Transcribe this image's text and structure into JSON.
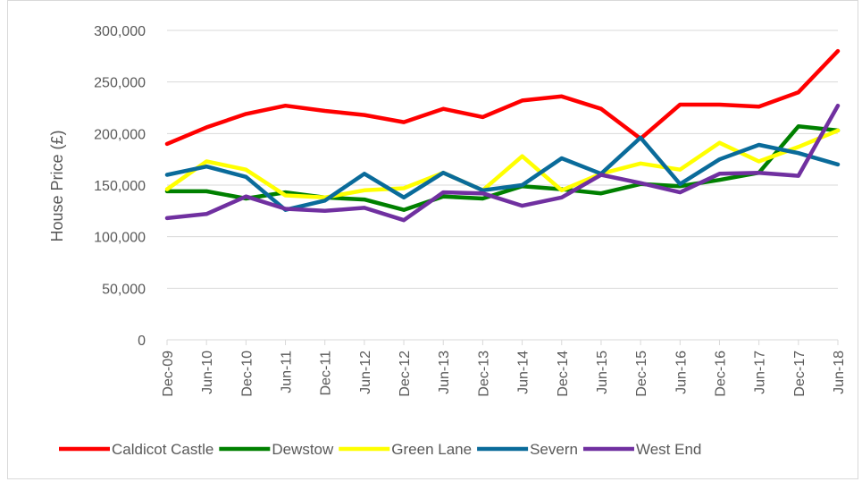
{
  "chart_data": {
    "type": "line",
    "title": "",
    "xlabel": "",
    "ylabel": "House Price (£)",
    "ylim": [
      0,
      300000
    ],
    "yticks": [
      0,
      50000,
      100000,
      150000,
      200000,
      250000,
      300000
    ],
    "ytick_labels": [
      "0",
      "50,000",
      "100,000",
      "150,000",
      "200,000",
      "250,000",
      "300,000"
    ],
    "grid": "horizontal",
    "legend_position": "bottom",
    "categories": [
      "Dec-09",
      "Jun-10",
      "Dec-10",
      "Jun-11",
      "Dec-11",
      "Jun-12",
      "Dec-12",
      "Jun-13",
      "Dec-13",
      "Jun-14",
      "Dec-14",
      "Jun-15",
      "Dec-15",
      "Jun-16",
      "Dec-16",
      "Jun-17",
      "Dec-17",
      "Jun-18"
    ],
    "series": [
      {
        "name": "Caldicot Castle",
        "color": "#ff0000",
        "values": [
          190000,
          206000,
          219000,
          227000,
          222000,
          218000,
          211000,
          224000,
          216000,
          232000,
          236000,
          224000,
          195000,
          228000,
          228000,
          226000,
          240000,
          280000
        ]
      },
      {
        "name": "Dewstow",
        "color": "#008000",
        "values": [
          144000,
          144000,
          137000,
          143000,
          138000,
          136000,
          126000,
          139000,
          137000,
          149000,
          146000,
          142000,
          151000,
          149000,
          155000,
          162000,
          207000,
          203000
        ]
      },
      {
        "name": "Green Lane",
        "color": "#ffff00",
        "values": [
          146000,
          173000,
          165000,
          140000,
          138000,
          145000,
          147000,
          162000,
          145000,
          178000,
          145000,
          161000,
          171000,
          165000,
          191000,
          173000,
          187000,
          203000
        ]
      },
      {
        "name": "Severn",
        "color": "#0a6b9a",
        "values": [
          160000,
          168000,
          158000,
          126000,
          135000,
          161000,
          138000,
          162000,
          145000,
          150000,
          176000,
          161000,
          196000,
          151000,
          175000,
          189000,
          181000,
          170000
        ]
      },
      {
        "name": "West End",
        "color": "#7030a0",
        "values": [
          118000,
          122000,
          139000,
          127000,
          125000,
          128000,
          116000,
          143000,
          142000,
          130000,
          138000,
          160000,
          152000,
          143000,
          161000,
          162000,
          159000,
          227000
        ]
      }
    ]
  }
}
